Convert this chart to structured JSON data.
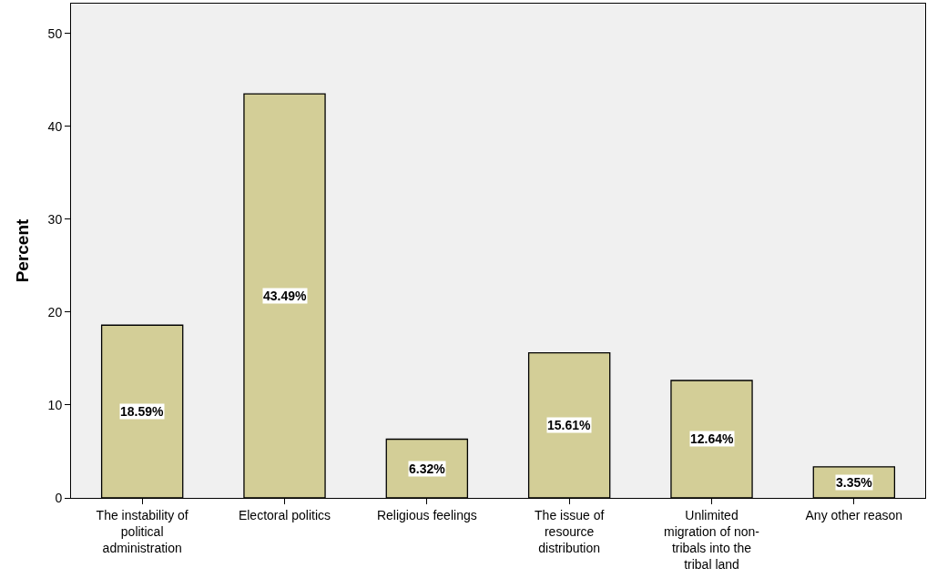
{
  "chart_data": {
    "type": "bar",
    "ylabel": "Percent",
    "categories": [
      "The instability of political administration",
      "Electoral politics",
      "Religious feelings",
      "The issue of resource distribution",
      "Unlimited migration of non-tribals into the tribal land",
      "Any other reason"
    ],
    "values": [
      18.59,
      43.49,
      6.32,
      15.61,
      12.64,
      3.35
    ],
    "value_labels": [
      "18.59%",
      "43.49%",
      "6.32%",
      "15.61%",
      "12.64%",
      "3.35%"
    ],
    "color": "#d3ce97",
    "ylim": [
      0,
      53.2
    ],
    "yticks": [
      0,
      10,
      20,
      30,
      40,
      50
    ],
    "grid": false,
    "legend": false
  }
}
